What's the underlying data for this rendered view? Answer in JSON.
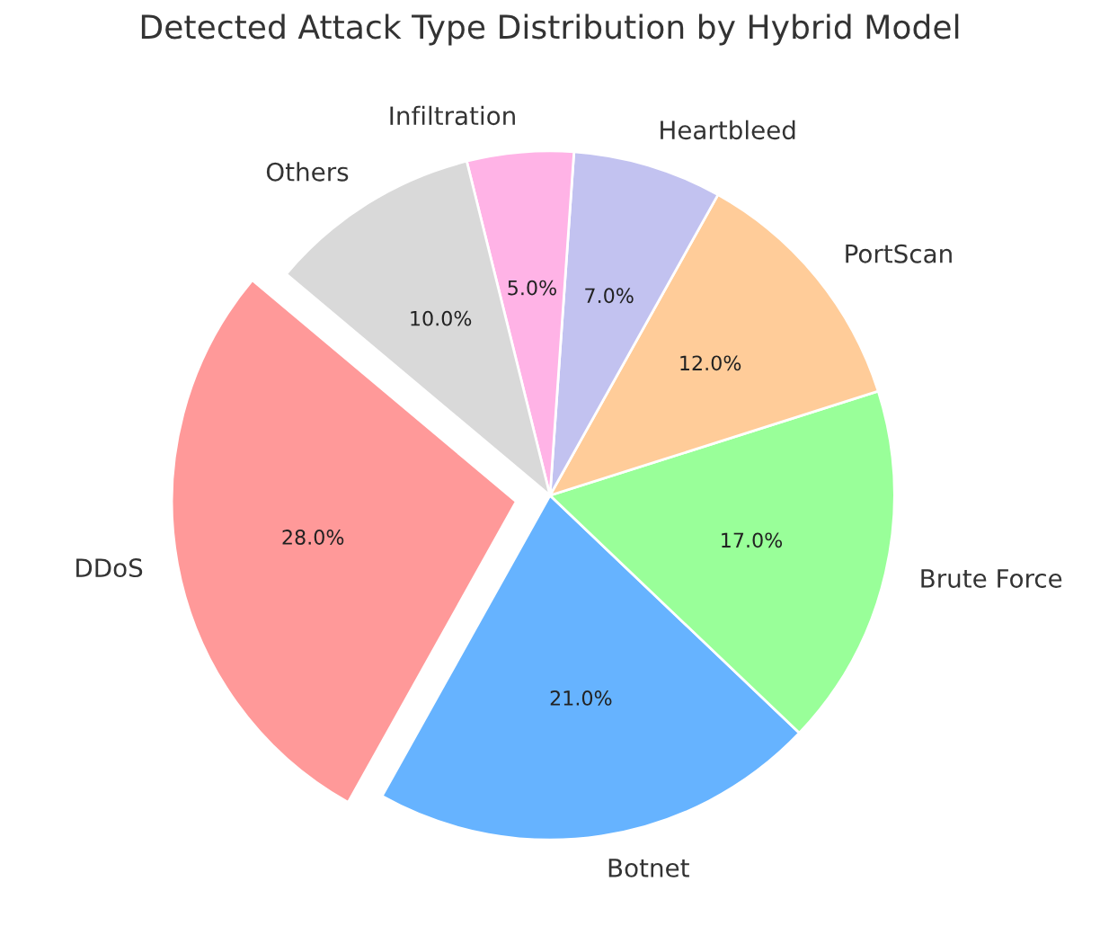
{
  "chart_data": {
    "type": "pie",
    "title": "Detected Attack Type Distribution by Hybrid Model",
    "categories": [
      "DDoS",
      "Botnet",
      "Brute Force",
      "PortScan",
      "Heartbleed",
      "Infiltration",
      "Others"
    ],
    "values": [
      28,
      21,
      17,
      12,
      7,
      5,
      10
    ],
    "value_labels": [
      "28.0%",
      "21.0%",
      "17.0%",
      "12.0%",
      "7.0%",
      "5.0%",
      "10.0%"
    ],
    "colors": [
      "#ff9999",
      "#66b3ff",
      "#99ff99",
      "#ffcc99",
      "#c2c2f0",
      "#ffb3e6",
      "#d9d9d9"
    ],
    "legend": false
  }
}
